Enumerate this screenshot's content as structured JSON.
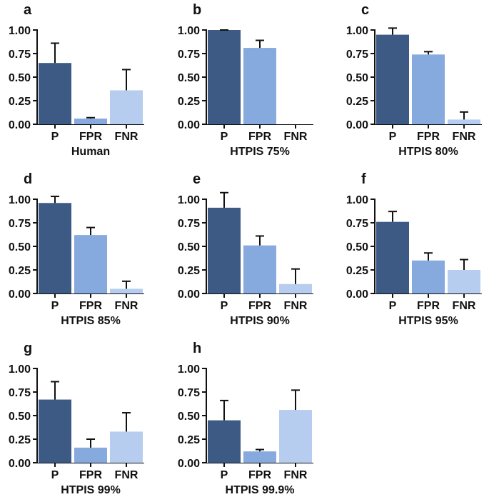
{
  "chart_data": [
    {
      "type": "bar",
      "panel": "a",
      "xlabel": "Human",
      "categories": [
        "P",
        "FPR",
        "FNR"
      ],
      "values": [
        0.65,
        0.06,
        0.36
      ],
      "errors": [
        0.21,
        0.01,
        0.22
      ],
      "yticks": [
        "0.00",
        "0.25",
        "0.50",
        "0.75",
        "1.00"
      ],
      "ylim": [
        0,
        1.0
      ]
    },
    {
      "type": "bar",
      "panel": "b",
      "xlabel": "HTPIS 75%",
      "categories": [
        "P",
        "FPR",
        "FNR"
      ],
      "values": [
        1.0,
        0.81,
        0.0
      ],
      "errors": [
        0.0,
        0.08,
        0.0
      ],
      "yticks": [
        "0.00",
        "0.25",
        "0.50",
        "0.75",
        "1.00"
      ],
      "ylim": [
        0,
        1.0
      ]
    },
    {
      "type": "bar",
      "panel": "c",
      "xlabel": "HTPIS 80%",
      "categories": [
        "P",
        "FPR",
        "FNR"
      ],
      "values": [
        0.95,
        0.74,
        0.05
      ],
      "errors": [
        0.07,
        0.03,
        0.08
      ],
      "yticks": [
        "0.00",
        "0.25",
        "0.50",
        "0.75",
        "1.00"
      ],
      "ylim": [
        0,
        1.0
      ]
    },
    {
      "type": "bar",
      "panel": "d",
      "xlabel": "HTPIS 85%",
      "categories": [
        "P",
        "FPR",
        "FNR"
      ],
      "values": [
        0.96,
        0.62,
        0.05
      ],
      "errors": [
        0.07,
        0.08,
        0.08
      ],
      "yticks": [
        "0.00",
        "0.25",
        "0.50",
        "0.75",
        "1.00"
      ],
      "ylim": [
        0,
        1.0
      ]
    },
    {
      "type": "bar",
      "panel": "e",
      "xlabel": "HTPIS 90%",
      "categories": [
        "P",
        "FPR",
        "FNR"
      ],
      "values": [
        0.91,
        0.51,
        0.1
      ],
      "errors": [
        0.16,
        0.1,
        0.16
      ],
      "yticks": [
        "0.00",
        "0.25",
        "0.50",
        "0.75",
        "1.00"
      ],
      "ylim": [
        0,
        1.0
      ]
    },
    {
      "type": "bar",
      "panel": "f",
      "xlabel": "HTPIS 95%",
      "categories": [
        "P",
        "FPR",
        "FNR"
      ],
      "values": [
        0.76,
        0.35,
        0.25
      ],
      "errors": [
        0.11,
        0.08,
        0.11
      ],
      "yticks": [
        "0.00",
        "0.25",
        "0.50",
        "0.75",
        "1.00"
      ],
      "ylim": [
        0,
        1.0
      ]
    },
    {
      "type": "bar",
      "panel": "g",
      "xlabel": "HTPIS 99%",
      "categories": [
        "P",
        "FPR",
        "FNR"
      ],
      "values": [
        0.67,
        0.16,
        0.33
      ],
      "errors": [
        0.19,
        0.09,
        0.2
      ],
      "yticks": [
        "0.00",
        "0.25",
        "0.50",
        "0.75",
        "1.00"
      ],
      "ylim": [
        0,
        1.0
      ]
    },
    {
      "type": "bar",
      "panel": "h",
      "xlabel": "HTPIS 99.9%",
      "categories": [
        "P",
        "FPR",
        "FNR"
      ],
      "values": [
        0.45,
        0.12,
        0.56
      ],
      "errors": [
        0.21,
        0.02,
        0.21
      ],
      "yticks": [
        "0.00",
        "0.25",
        "0.50",
        "0.75",
        "1.00"
      ],
      "ylim": [
        0,
        1.0
      ]
    }
  ],
  "colors": {
    "bar_p": "#3c5a84",
    "bar_fpr": "#86a9de",
    "bar_fnr": "#b6cdef",
    "axis": "#111111",
    "errorbar": "#111111"
  }
}
